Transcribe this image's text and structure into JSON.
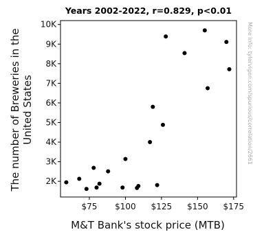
{
  "chart_data": {
    "type": "scatter",
    "title": "Years 2002-2022, r=0.829, p<0.01",
    "xlabel": "M&T Bank's stock price (MTB)",
    "ylabel_line1": "The number of Breweries in the",
    "ylabel_line2": "United States",
    "side_note": "More info: tylervigen.com/spurious/correlation/2661",
    "xlim": [
      55,
      177
    ],
    "ylim": [
      1200,
      10200
    ],
    "x_ticks": [
      75,
      100,
      125,
      150,
      175
    ],
    "x_tick_labels": [
      "$75",
      "$100",
      "$125",
      "$150",
      "$175"
    ],
    "y_ticks": [
      2000,
      3000,
      4000,
      5000,
      6000,
      7000,
      8000,
      9000,
      10000
    ],
    "y_tick_labels": [
      "2K",
      "3K",
      "4K",
      "5K",
      "6K",
      "7K",
      "8K",
      "9K",
      "10K"
    ],
    "grid": false,
    "point_color": "#000000",
    "points": [
      {
        "x": 59,
        "y": 1950
      },
      {
        "x": 68,
        "y": 2130
      },
      {
        "x": 73,
        "y": 1610
      },
      {
        "x": 78,
        "y": 2690
      },
      {
        "x": 80,
        "y": 1680
      },
      {
        "x": 82,
        "y": 1880
      },
      {
        "x": 88,
        "y": 2510
      },
      {
        "x": 98,
        "y": 1680
      },
      {
        "x": 100,
        "y": 3140
      },
      {
        "x": 108,
        "y": 1660
      },
      {
        "x": 109,
        "y": 1760
      },
      {
        "x": 117,
        "y": 4000
      },
      {
        "x": 119,
        "y": 5800
      },
      {
        "x": 122,
        "y": 1810
      },
      {
        "x": 126,
        "y": 4880
      },
      {
        "x": 128,
        "y": 9390
      },
      {
        "x": 141,
        "y": 8540
      },
      {
        "x": 155,
        "y": 9700
      },
      {
        "x": 157,
        "y": 6750
      },
      {
        "x": 170,
        "y": 9110
      },
      {
        "x": 172,
        "y": 7720
      }
    ]
  }
}
